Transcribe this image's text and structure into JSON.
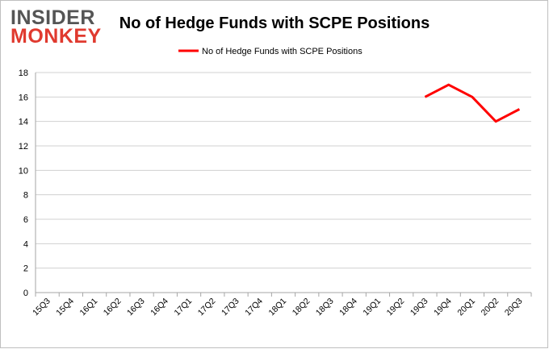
{
  "logo": {
    "top": "INSIDER",
    "bottom": "MONKEY"
  },
  "chart_data": {
    "type": "line",
    "title": "No of Hedge Funds with SCPE Positions",
    "xlabel": "",
    "ylabel": "",
    "categories": [
      "15Q3",
      "15Q4",
      "16Q1",
      "16Q2",
      "16Q3",
      "16Q4",
      "17Q1",
      "17Q2",
      "17Q3",
      "17Q4",
      "18Q1",
      "18Q2",
      "18Q3",
      "18Q4",
      "19Q1",
      "19Q2",
      "19Q3",
      "19Q4",
      "20Q1",
      "20Q2",
      "20Q3"
    ],
    "series": [
      {
        "name": "No of Hedge Funds with SCPE Positions",
        "color": "#ff0000",
        "values": [
          null,
          null,
          null,
          null,
          null,
          null,
          null,
          null,
          null,
          null,
          null,
          null,
          null,
          null,
          null,
          null,
          16,
          17,
          16,
          14,
          15
        ]
      }
    ],
    "ylim": [
      0,
      18
    ],
    "yticks": [
      0,
      2,
      4,
      6,
      8,
      10,
      12,
      14,
      16,
      18
    ],
    "grid": true,
    "legend": "top-center"
  }
}
